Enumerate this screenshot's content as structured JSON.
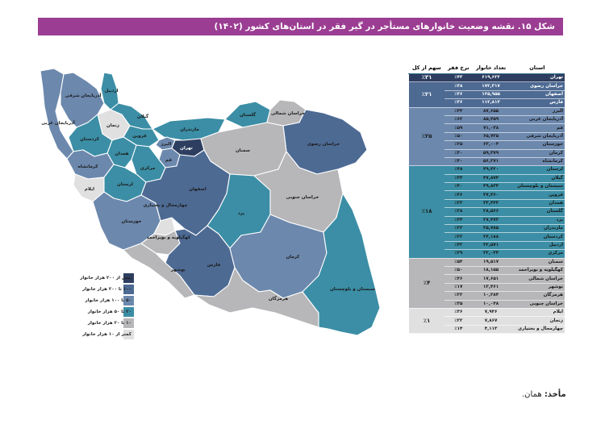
{
  "title": "شکل ۱۵. نقشه وضعیت خانوارهای مستأجر در گیر فقر در استان‌های کشور (۱۴۰۲)",
  "colors": {
    "title_bg": "#9b3d92",
    "g1": "#2d3e60",
    "g2": "#4d6a93",
    "g3": "#6c88ad",
    "g4": "#3b8ea5",
    "g5": "#b7b7b9",
    "g6": "#e0e0e1"
  },
  "map_labels": {
    "azarbayjan_gharbi": "آذربایجان غربی",
    "azarbayjan_sharghi": "آذربایجان شرقی",
    "ardabil": "اردبیل",
    "gilan": "گیلان",
    "zanjan": "زنجان",
    "qazvin": "قزوین",
    "alborz": "البرز",
    "tehran": "تهران",
    "mazandaran": "مازندران",
    "golestan": "گلستان",
    "khorasan_shomali": "خراسان شمالی",
    "khorasan_razavi": "خراسان رضوی",
    "khorasan_jonubi": "خراسان جنوبی",
    "semnan": "سمنان",
    "qom": "قم",
    "markazi": "مرکزی",
    "hamedan": "همدان",
    "kordestan": "کردستان",
    "kermanshah": "کرمانشاه",
    "ilam": "ایلام",
    "lorestan": "لرستان",
    "isfahan": "اصفهان",
    "yazd": "یزد",
    "khuzestan": "خوزستان",
    "chaharmahal": "چهارمحال و بختیاری",
    "kohgiluyeh": "کهگیلویه و بویراحمد",
    "bushehr": "بوشهر",
    "fars": "فارس",
    "kerman": "کرمان",
    "hormozgan": "هرمزگان",
    "sistan": "سیستان و بلوچستان"
  },
  "legend": [
    {
      "label": "بیش از ۲۰۰ هزار خانوار",
      "color": "#2d3e60"
    },
    {
      "label": "۱۰۰ تا ۲۰۰ هزار خانوار",
      "color": "#4d6a93"
    },
    {
      "label": "۵۰ تا ۱۰۰ هزار خانوار",
      "color": "#6c88ad"
    },
    {
      "label": "۲۰ تا ۵۰ هزار خانوار",
      "color": "#3b8ea5"
    },
    {
      "label": "۱۰ تا ۲۰ هزار خانوار",
      "color": "#b7b7b9"
    },
    {
      "label": "کمتر از ۱۰ هزار خانوار",
      "color": "#e0e0e1"
    }
  ],
  "table": {
    "headers": {
      "province": "استان",
      "households": "تعداد خانوار",
      "rate": "نرخ فقر",
      "share": "سهم از کل"
    },
    "groups": [
      {
        "share": "٪۳۱",
        "color": "#2d3e60",
        "rows": [
          {
            "province": "تهران",
            "households": "۶۱۹,۶۲۲",
            "rate": "٪۴۳"
          }
        ]
      },
      {
        "share": "٪۲۱",
        "color": "#4d6a93",
        "rows": [
          {
            "province": "خراسان رضوی",
            "households": "۱۷۲,۳۱۷",
            "rate": "٪۳۸"
          },
          {
            "province": "اصفهان",
            "households": "۱۲۵,۹۵۵",
            "rate": "٪۳۶"
          },
          {
            "province": "فارس",
            "households": "۱۱۲,۸۱۳",
            "rate": "٪۳۶"
          }
        ]
      },
      {
        "share": "٪۲۵",
        "color": "#6c88ad",
        "rows": [
          {
            "province": "البرز",
            "households": "۸۷,۶۵۵",
            "rate": "٪۳۴"
          },
          {
            "province": "آذربایجان غربی",
            "households": "۸۵,۴۵۹",
            "rate": "٪۶۲"
          },
          {
            "province": "قم",
            "households": "۷۱,۰۳۸",
            "rate": "٪۵۹"
          },
          {
            "province": "آذربایجان شرقی",
            "households": "۶۵,۷۲۵",
            "rate": "٪۵۰"
          },
          {
            "province": "خوزستان",
            "households": "۶۳,۰۰۴",
            "rate": "٪۲۵"
          },
          {
            "province": "کرمان",
            "households": "۵۹,۳۷۹",
            "rate": "٪۳۰"
          },
          {
            "province": "کرمانشاه",
            "households": "۵۶,۲۷۱",
            "rate": "٪۴۰"
          }
        ]
      },
      {
        "share": "٪۱۸",
        "color": "#3b8ea5",
        "rows": [
          {
            "province": "لرستان",
            "households": "۴۹,۴۲۰",
            "rate": "٪۴۸"
          },
          {
            "province": "گیلان",
            "households": "۴۷,۸۷۴",
            "rate": "٪۳۴"
          },
          {
            "province": "سیستان و بلوچستان",
            "households": "۳۹,۸۳۴",
            "rate": "٪۴۰"
          },
          {
            "province": "قزوین",
            "households": "۳۷,۴۶۰",
            "rate": "٪۴۶"
          },
          {
            "province": "همدان",
            "households": "۳۳,۴۴۳",
            "rate": "٪۲۳"
          },
          {
            "province": "گلستان",
            "households": "۲۸,۵۶۶",
            "rate": "٪۲۸"
          },
          {
            "province": "یزد",
            "households": "۲۷,۴۷۳",
            "rate": "٪۳۴"
          },
          {
            "province": "مازندران",
            "households": "۲۵,۷۸۵",
            "rate": "٪۲۲"
          },
          {
            "province": "کردستان",
            "households": "۲۴,۱۸۸",
            "rate": "٪۲۲"
          },
          {
            "province": "اردبیل",
            "households": "۲۲,۵۷۱",
            "rate": "٪۴۲"
          },
          {
            "province": "مرکزی",
            "households": "۲۲,۰۳۴",
            "rate": "٪۲۹"
          }
        ]
      },
      {
        "share": "٪۴",
        "color": "#b7b7b9",
        "rows": [
          {
            "province": "سمنان",
            "households": "۱۹,۵۱۷",
            "rate": "٪۵۴"
          },
          {
            "province": "کهگیلویه و بویراحمد",
            "households": "۱۸,۱۵۵",
            "rate": "٪۵۰"
          },
          {
            "province": "خراسان شمالی",
            "households": "۱۷,۶۵۱",
            "rate": "٪۴۶"
          },
          {
            "province": "بوشهر",
            "households": "۱۳,۴۶۱",
            "rate": "٪۱۷"
          },
          {
            "province": "هرمزگان",
            "households": "۱۰,۲۸۴",
            "rate": "٪۲۲"
          },
          {
            "province": "خراسان جنوبی",
            "households": "۱۰,۰۴۸",
            "rate": "٪۳۵"
          }
        ]
      },
      {
        "share": "٪۱",
        "color": "#e0e0e1",
        "rows": [
          {
            "province": "ایلام",
            "households": "۷,۹۴۶",
            "rate": "٪۳۶"
          },
          {
            "province": "زنجان",
            "households": "۷,۸۶۷",
            "rate": "٪۲۲"
          },
          {
            "province": "چهارمحال و بختیاری",
            "households": "۴,۱۱۳",
            "rate": "٪۱۴"
          }
        ]
      }
    ]
  },
  "source": {
    "label": "مأخذ:",
    "text": "همان."
  }
}
